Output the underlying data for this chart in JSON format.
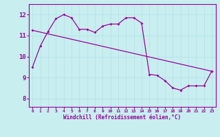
{
  "xlabel": "Windchill (Refroidissement éolien,°C)",
  "bg_color": "#c8eef0",
  "line_color": "#990099",
  "grid_color": "#b8e4e8",
  "yticks": [
    8,
    9,
    10,
    11,
    12
  ],
  "ylim": [
    7.6,
    12.5
  ],
  "xlim": [
    -0.5,
    23.5
  ],
  "series1_x": [
    0,
    1,
    2,
    3,
    4,
    5,
    6,
    7,
    8,
    9,
    10,
    11,
    12,
    13,
    14,
    15,
    16,
    17,
    18,
    19,
    20,
    21,
    22,
    23
  ],
  "series1_y": [
    9.5,
    10.5,
    11.2,
    11.8,
    12.0,
    11.85,
    11.3,
    11.3,
    11.15,
    11.45,
    11.55,
    11.55,
    11.85,
    11.85,
    11.6,
    9.15,
    9.1,
    8.85,
    8.5,
    8.4,
    8.6,
    8.6,
    8.6,
    9.3
  ],
  "series2_x": [
    0,
    23
  ],
  "series2_y": [
    11.25,
    9.3
  ],
  "xtick_labels": [
    "0",
    "1",
    "2",
    "3",
    "4",
    "5",
    "6",
    "7",
    "8",
    "9",
    "10",
    "11",
    "12",
    "13",
    "14",
    "15",
    "16",
    "17",
    "18",
    "19",
    "20",
    "21",
    "22",
    "23"
  ]
}
